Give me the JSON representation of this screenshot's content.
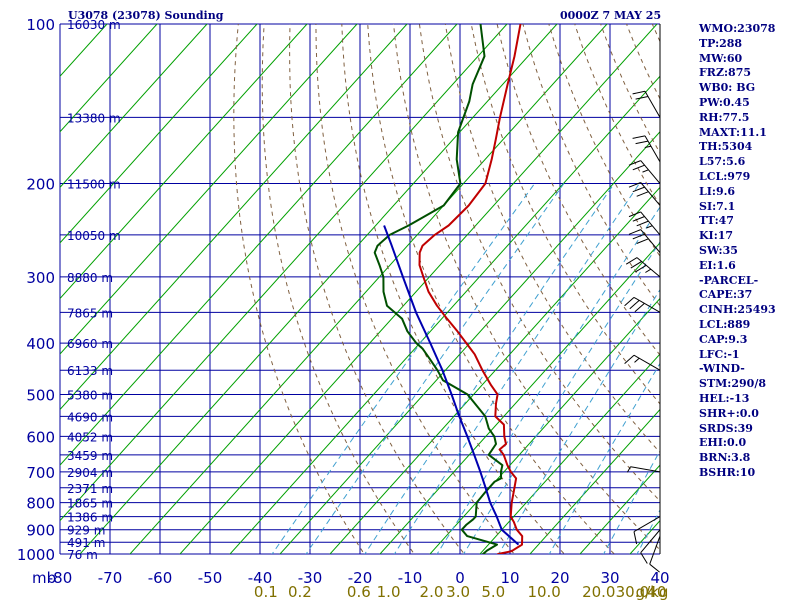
{
  "header": {
    "station": "U3078 (23078) Sounding",
    "time": "0000Z  7 MAY 25"
  },
  "indices": [
    "WMO:23078",
    "TP:288",
    "MW:60",
    "FRZ:875",
    "WB0: BG",
    "PW:0.45",
    "RH:77.5",
    "MAXT:11.1",
    "TH:5304",
    "L57:5.6",
    "LCL:979",
    "LI:9.6",
    "SI:7.1",
    "TT:47",
    "KI:17",
    "SW:35",
    "EI:1.6",
    "-PARCEL-",
    "CAPE:37",
    "CINH:25493",
    "LCL:889",
    "CAP:9.3",
    "LFC:-1",
    "-WIND-",
    "STM:290/8",
    "HEL:-13",
    "SHR+:0.0",
    "SRDS:39",
    "EHI:0.0",
    "BRN:3.8",
    "BSHR:10"
  ],
  "chart_data": {
    "type": "line",
    "chart_kind": "skew-T log-p sounding",
    "x_axis": {
      "unit_label": "mb",
      "ticks": [
        "-80",
        "-70",
        "-60",
        "-50",
        "-40",
        "-30",
        "-20",
        "-10",
        "0",
        "10",
        "20",
        "30",
        "40"
      ],
      "range": [
        -80,
        40
      ]
    },
    "y_axis": {
      "scale": "log",
      "ticks": [
        "100",
        "200",
        "300",
        "400",
        "500",
        "600",
        "700",
        "800",
        "900",
        "1000"
      ],
      "range": [
        100,
        1050
      ]
    },
    "height_labels": [
      {
        "p": 100,
        "label": "16030 m"
      },
      {
        "p": 150,
        "label": "13380 m"
      },
      {
        "p": 200,
        "label": "11500 m"
      },
      {
        "p": 250,
        "label": "10050 m"
      },
      {
        "p": 300,
        "label": "8880 m"
      },
      {
        "p": 350,
        "label": "7865 m"
      },
      {
        "p": 400,
        "label": "6960 m"
      },
      {
        "p": 450,
        "label": "6133 m"
      },
      {
        "p": 500,
        "label": "5380 m"
      },
      {
        "p": 550,
        "label": "4690 m"
      },
      {
        "p": 600,
        "label": "4052 m"
      },
      {
        "p": 650,
        "label": "3459 m"
      },
      {
        "p": 700,
        "label": "2904 m"
      },
      {
        "p": 750,
        "label": "2371 m"
      },
      {
        "p": 800,
        "label": "1865 m"
      },
      {
        "p": 850,
        "label": "1386 m"
      },
      {
        "p": 900,
        "label": "929 m"
      },
      {
        "p": 950,
        "label": "491 m"
      },
      {
        "p": 1000,
        "label": "76 m"
      }
    ],
    "mixing_ratio_labels": [
      "0.1",
      "0.2",
      "0.6",
      "1.0",
      "2.0",
      "3.0",
      "5.0",
      "10.0",
      "20.0",
      "30.0",
      "40",
      "g/kg"
    ],
    "series": [
      {
        "color": "#c00000",
        "points": [
          [
            1009,
            5.9
          ],
          [
            1000,
            3.6
          ],
          [
            988,
            5.8
          ],
          [
            960,
            6.7
          ],
          [
            925,
            5.2
          ],
          [
            900,
            3.0
          ],
          [
            870,
            1.0
          ],
          [
            850,
            -0.6
          ],
          [
            800,
            -2.9
          ],
          [
            760,
            -4.6
          ],
          [
            720,
            -6.4
          ],
          [
            700,
            -8.6
          ],
          [
            680,
            -10.5
          ],
          [
            650,
            -13.1
          ],
          [
            635,
            -14.9
          ],
          [
            620,
            -14.6
          ],
          [
            600,
            -16.3
          ],
          [
            570,
            -18.5
          ],
          [
            550,
            -21.7
          ],
          [
            520,
            -23.9
          ],
          [
            500,
            -25.2
          ],
          [
            480,
            -28.2
          ],
          [
            450,
            -32.6
          ],
          [
            420,
            -37.0
          ],
          [
            400,
            -40.7
          ],
          [
            380,
            -44.6
          ],
          [
            360,
            -48.9
          ],
          [
            340,
            -53.3
          ],
          [
            320,
            -57.5
          ],
          [
            300,
            -61.2
          ],
          [
            285,
            -64.1
          ],
          [
            270,
            -66.3
          ],
          [
            262,
            -67.0
          ],
          [
            250,
            -66.5
          ],
          [
            240,
            -65.4
          ],
          [
            220,
            -65.0
          ],
          [
            200,
            -65.6
          ],
          [
            180,
            -68.7
          ],
          [
            165,
            -71.5
          ],
          [
            150,
            -74.6
          ],
          [
            130,
            -79.0
          ],
          [
            115,
            -82.7
          ],
          [
            100,
            -87.3
          ]
        ]
      },
      {
        "color": "#005000",
        "points": [
          [
            1009,
            2.9
          ],
          [
            1000,
            0.6
          ],
          [
            985,
            0.8
          ],
          [
            960,
            1.7
          ],
          [
            925,
            -5.8
          ],
          [
            900,
            -8.0
          ],
          [
            880,
            -8.0
          ],
          [
            860,
            -7.6
          ],
          [
            850,
            -7.6
          ],
          [
            800,
            -9.9
          ],
          [
            760,
            -10.1
          ],
          [
            730,
            -10.1
          ],
          [
            720,
            -9.4
          ],
          [
            700,
            -10.6
          ],
          [
            680,
            -11.5
          ],
          [
            650,
            -16.1
          ],
          [
            620,
            -16.6
          ],
          [
            600,
            -18.3
          ],
          [
            580,
            -20.8
          ],
          [
            550,
            -23.7
          ],
          [
            500,
            -31.2
          ],
          [
            470,
            -38.7
          ],
          [
            450,
            -41.6
          ],
          [
            430,
            -44.9
          ],
          [
            410,
            -48.4
          ],
          [
            400,
            -50.7
          ],
          [
            380,
            -54.6
          ],
          [
            360,
            -57.9
          ],
          [
            340,
            -63.3
          ],
          [
            320,
            -66.5
          ],
          [
            300,
            -69.2
          ],
          [
            285,
            -72.1
          ],
          [
            270,
            -75.3
          ],
          [
            262,
            -76.0
          ],
          [
            250,
            -75.5
          ],
          [
            240,
            -73.4
          ],
          [
            220,
            -70.0
          ],
          [
            200,
            -70.6
          ],
          [
            180,
            -75.7
          ],
          [
            160,
            -80.3
          ],
          [
            140,
            -83.6
          ],
          [
            130,
            -86.0
          ],
          [
            115,
            -88.7
          ],
          [
            100,
            -95.3
          ]
        ]
      },
      {
        "color": "#0000b0",
        "points": [
          [
            960,
            6.0
          ],
          [
            900,
            0.0
          ],
          [
            850,
            -3.4
          ],
          [
            800,
            -7.2
          ],
          [
            750,
            -10.8
          ],
          [
            700,
            -14.7
          ],
          [
            650,
            -19.0
          ],
          [
            600,
            -23.7
          ],
          [
            550,
            -28.9
          ],
          [
            500,
            -34.4
          ],
          [
            450,
            -40.6
          ],
          [
            400,
            -47.9
          ],
          [
            350,
            -56.3
          ],
          [
            300,
            -65.3
          ],
          [
            260,
            -73.6
          ],
          [
            240,
            -78.3
          ]
        ]
      }
    ],
    "wind_barbs": [
      {
        "p": 150,
        "dir": 330,
        "spd": 20
      },
      {
        "p": 182,
        "dir": 330,
        "spd": 25
      },
      {
        "p": 200,
        "dir": 320,
        "spd": 25
      },
      {
        "p": 220,
        "dir": 320,
        "spd": 30
      },
      {
        "p": 250,
        "dir": 320,
        "spd": 35
      },
      {
        "p": 270,
        "dir": 320,
        "spd": 30
      },
      {
        "p": 300,
        "dir": 310,
        "spd": 35
      },
      {
        "p": 350,
        "dir": 300,
        "spd": 30
      },
      {
        "p": 450,
        "dir": 300,
        "spd": 15
      },
      {
        "p": 700,
        "dir": 280,
        "spd": 5
      },
      {
        "p": 850,
        "dir": 240,
        "spd": 10
      },
      {
        "p": 900,
        "dir": 220,
        "spd": 10
      },
      {
        "p": 925,
        "dir": 200,
        "spd": 10
      }
    ]
  }
}
